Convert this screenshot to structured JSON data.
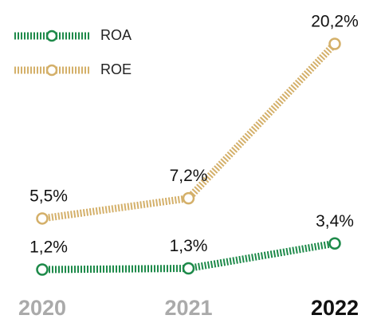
{
  "chart_data": {
    "type": "line",
    "categories": [
      "2020",
      "2021",
      "2022"
    ],
    "series": [
      {
        "name": "ROA",
        "color": "#1e8a4a",
        "values": [
          1.2,
          1.3,
          3.4
        ],
        "value_labels": [
          "1,2%",
          "1,3%",
          "3,4%"
        ]
      },
      {
        "name": "ROE",
        "color": "#d4b06a",
        "values": [
          5.5,
          7.2,
          20.2
        ],
        "value_labels": [
          "5,5%",
          "7,2%",
          "20,2%"
        ]
      }
    ],
    "legend": "top-left"
  }
}
